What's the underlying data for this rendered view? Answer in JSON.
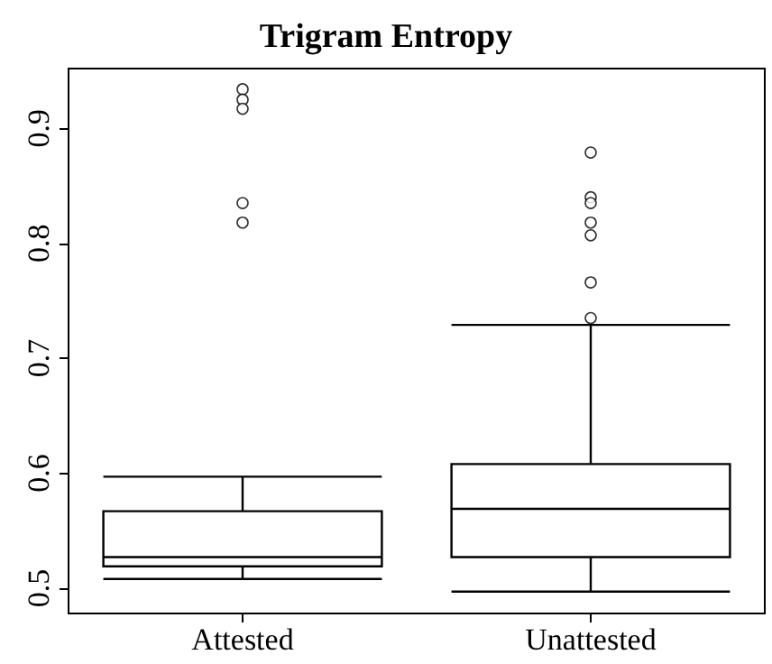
{
  "chart_data": {
    "type": "box",
    "title": "Trigram Entropy",
    "categories": [
      "Attested",
      "Unattested"
    ],
    "boxes": [
      {
        "low": 0.508,
        "q1": 0.519,
        "median": 0.527,
        "q3": 0.567,
        "high": 0.597,
        "outliers": [
          0.934,
          0.925,
          0.917,
          0.835,
          0.818
        ]
      },
      {
        "low": 0.497,
        "q1": 0.527,
        "median": 0.569,
        "q3": 0.608,
        "high": 0.729,
        "outliers": [
          0.879,
          0.84,
          0.835,
          0.818,
          0.807,
          0.766,
          0.735
        ]
      }
    ],
    "ylim": [
      0.478,
      0.952
    ],
    "yticks": [
      0.5,
      0.6,
      0.7,
      0.8,
      0.9
    ],
    "grid": false,
    "marker": "circle"
  }
}
